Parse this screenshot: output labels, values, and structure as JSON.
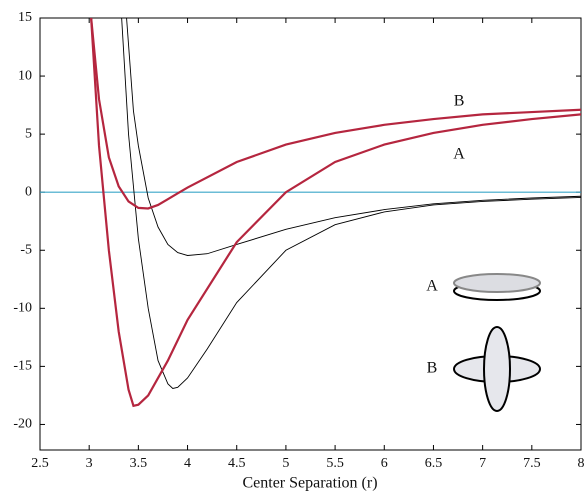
{
  "chart_data": {
    "type": "line",
    "x_label": "Center Separation (r)",
    "xlim": [
      2.5,
      8
    ],
    "ylim": [
      -22.2,
      15
    ],
    "xticks": [
      2.5,
      3,
      3.5,
      4,
      4.5,
      5,
      5.5,
      6,
      6.5,
      7,
      7.5,
      8
    ],
    "yticks": [
      -20,
      -15,
      -10,
      -5,
      0,
      5,
      10,
      15
    ],
    "hline": {
      "value": 0,
      "color": "#3aa6c8"
    },
    "series": [
      {
        "color": "#000000",
        "width": 0.9,
        "x": [
          3.38,
          3.45,
          3.5,
          3.6,
          3.7,
          3.8,
          3.9,
          4.0,
          4.2,
          4.5,
          5,
          5.5,
          6,
          6.5,
          7,
          7.5,
          8
        ],
        "values": [
          15,
          7,
          4,
          -0.5,
          -3,
          -4.5,
          -5.2,
          -5.45,
          -5.3,
          -4.5,
          -3.2,
          -2.2,
          -1.5,
          -1.0,
          -0.7,
          -0.5,
          -0.35
        ]
      },
      {
        "color": "#000000",
        "width": 0.9,
        "x": [
          3.33,
          3.4,
          3.5,
          3.6,
          3.7,
          3.8,
          3.85,
          3.9,
          4.0,
          4.2,
          4.5,
          5,
          5.5,
          6,
          6.5,
          7,
          7.5,
          8
        ],
        "values": [
          15,
          5,
          -4,
          -10,
          -14.5,
          -16.5,
          -16.9,
          -16.8,
          -16,
          -13.5,
          -9.5,
          -5,
          -2.8,
          -1.7,
          -1.1,
          -0.8,
          -0.6,
          -0.45
        ]
      },
      {
        "name": "B",
        "color": "#b5263f",
        "width": 2.2,
        "x": [
          3.02,
          3.1,
          3.2,
          3.3,
          3.4,
          3.5,
          3.6,
          3.7,
          3.8,
          3.9,
          4.0,
          4.5,
          5,
          5.5,
          6,
          6.5,
          7,
          7.5,
          8
        ],
        "values": [
          15,
          8,
          3,
          0.5,
          -0.8,
          -1.35,
          -1.4,
          -1.1,
          -0.6,
          -0.1,
          0.4,
          2.6,
          4.1,
          5.1,
          5.8,
          6.3,
          6.7,
          6.9,
          7.1
        ]
      },
      {
        "name": "A",
        "color": "#b5263f",
        "width": 2.2,
        "x": [
          3.02,
          3.1,
          3.2,
          3.3,
          3.4,
          3.45,
          3.5,
          3.6,
          3.8,
          4.0,
          4.5,
          5,
          5.5,
          6,
          6.5,
          7,
          7.5,
          8
        ],
        "values": [
          15,
          4,
          -5,
          -12,
          -17,
          -18.4,
          -18.3,
          -17.5,
          -14.5,
          -11,
          -4.3,
          0,
          2.6,
          4.1,
          5.1,
          5.8,
          6.3,
          6.7
        ]
      }
    ],
    "annotations": [
      {
        "text": "B",
        "x": 6.76,
        "y": 7.8
      },
      {
        "text": "A",
        "x": 6.76,
        "y": 3.2
      }
    ],
    "inset_labels": [
      "A",
      "B"
    ]
  }
}
